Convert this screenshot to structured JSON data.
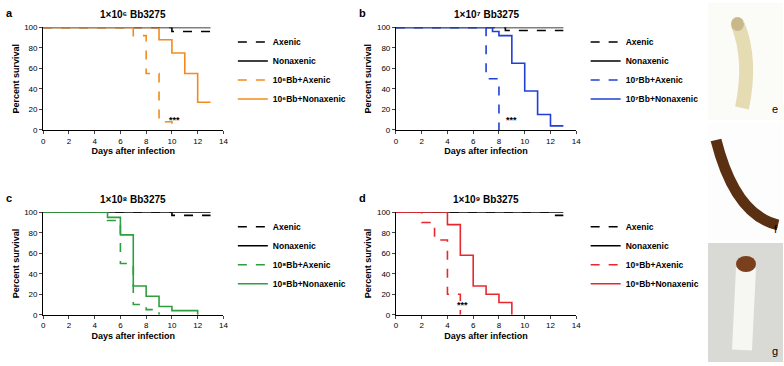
{
  "chart_data": [
    {
      "panel": "a",
      "type": "line",
      "title": "1×10⁶ Bb3275",
      "x_label": "Days after infection",
      "y_label": "Percent survival",
      "xlim": [
        0,
        14
      ],
      "xticks": [
        0,
        2,
        4,
        6,
        8,
        10,
        12,
        14
      ],
      "ylim": [
        0,
        100
      ],
      "yticks": [
        0,
        20,
        40,
        60,
        80,
        100
      ],
      "annotations": [
        {
          "text": "***",
          "x": 9.6,
          "y": 3
        }
      ],
      "series": [
        {
          "name": "Axenic",
          "color": "#000000",
          "line_style": "dashed",
          "x": [
            0,
            10,
            13
          ],
          "values": [
            100,
            96,
            96
          ]
        },
        {
          "name": "Nonaxenic",
          "color": "#000000",
          "line_style": "solid",
          "x": [
            0,
            13
          ],
          "values": [
            100,
            100
          ]
        },
        {
          "name": "10⁶Bb+Axenic",
          "color": "#f28a1e",
          "line_style": "dashed",
          "x": [
            0,
            7,
            8,
            9,
            10
          ],
          "values": [
            100,
            92,
            55,
            8,
            0
          ]
        },
        {
          "name": "10⁶Bb+Nonaxenic",
          "color": "#f28a1e",
          "line_style": "solid",
          "x": [
            0,
            9,
            10,
            11,
            12,
            13
          ],
          "values": [
            100,
            88,
            75,
            55,
            27,
            27
          ]
        }
      ]
    },
    {
      "panel": "b",
      "type": "line",
      "title": "1×10⁷ Bb3275",
      "x_label": "Days after infection",
      "y_label": "Percent survival",
      "xlim": [
        0,
        14
      ],
      "xticks": [
        0,
        2,
        4,
        6,
        8,
        10,
        12,
        14
      ],
      "ylim": [
        0,
        100
      ],
      "yticks": [
        0,
        20,
        40,
        60,
        80,
        100
      ],
      "annotations": [
        {
          "text": "***",
          "x": 8.4,
          "y": 3
        }
      ],
      "series": [
        {
          "name": "Axenic",
          "color": "#000000",
          "line_style": "dashed",
          "x": [
            0,
            8.5,
            13
          ],
          "values": [
            100,
            97,
            97
          ]
        },
        {
          "name": "Nonaxenic",
          "color": "#000000",
          "line_style": "solid",
          "x": [
            0,
            13
          ],
          "values": [
            100,
            100
          ]
        },
        {
          "name": "10⁷Bb+Axenic",
          "color": "#1f3fd6",
          "line_style": "dashed",
          "x": [
            0,
            7,
            8
          ],
          "values": [
            100,
            50,
            0
          ]
        },
        {
          "name": "10⁷Bb+Nonaxenic",
          "color": "#1f3fd6",
          "line_style": "solid",
          "x": [
            0,
            7.5,
            8,
            9,
            10,
            11,
            12,
            13
          ],
          "values": [
            100,
            96,
            92,
            65,
            38,
            15,
            4,
            4
          ]
        }
      ]
    },
    {
      "panel": "c",
      "type": "line",
      "title": "1×10⁸ Bb3275",
      "x_label": "Days after infection",
      "y_label": "Percent survival",
      "xlim": [
        0,
        14
      ],
      "xticks": [
        0,
        2,
        4,
        6,
        8,
        10,
        12,
        14
      ],
      "ylim": [
        0,
        100
      ],
      "yticks": [
        0,
        20,
        40,
        60,
        80,
        100
      ],
      "annotations": [],
      "series": [
        {
          "name": "Axenic",
          "color": "#000000",
          "line_style": "dashed",
          "x": [
            0,
            10,
            13
          ],
          "values": [
            100,
            97,
            97
          ]
        },
        {
          "name": "Nonaxenic",
          "color": "#000000",
          "line_style": "solid",
          "x": [
            0,
            13
          ],
          "values": [
            100,
            100
          ]
        },
        {
          "name": "10⁸Bb+Axenic",
          "color": "#2e9e3e",
          "line_style": "dashed",
          "x": [
            0,
            5,
            6,
            7,
            8,
            9
          ],
          "values": [
            100,
            92,
            50,
            10,
            5,
            0
          ]
        },
        {
          "name": "10⁸Bb+Nonaxenic",
          "color": "#2e9e3e",
          "line_style": "solid",
          "x": [
            0,
            5,
            6,
            7,
            8,
            9,
            10,
            12
          ],
          "values": [
            100,
            95,
            78,
            28,
            18,
            8,
            4,
            0
          ]
        }
      ]
    },
    {
      "panel": "d",
      "type": "line",
      "title": "1×10⁹ Bb3275",
      "x_label": "Days after infection",
      "y_label": "Percent survival",
      "xlim": [
        0,
        14
      ],
      "xticks": [
        0,
        2,
        4,
        6,
        8,
        10,
        12,
        14
      ],
      "ylim": [
        0,
        100
      ],
      "yticks": [
        0,
        20,
        40,
        60,
        80,
        100
      ],
      "annotations": [
        {
          "text": "***",
          "x": 4.6,
          "y": 3
        }
      ],
      "series": [
        {
          "name": "Axenic",
          "color": "#000000",
          "line_style": "dashed",
          "x": [
            0,
            12,
            13
          ],
          "values": [
            100,
            97,
            97
          ]
        },
        {
          "name": "Nonaxenic",
          "color": "#000000",
          "line_style": "solid",
          "x": [
            0,
            13
          ],
          "values": [
            100,
            100
          ]
        },
        {
          "name": "10⁹Bb+Axenic",
          "color": "#e8282e",
          "line_style": "dashed",
          "x": [
            0,
            2,
            3,
            4,
            5
          ],
          "values": [
            100,
            90,
            73,
            20,
            0
          ]
        },
        {
          "name": "10⁹Bb+Nonaxenic",
          "color": "#e8282e",
          "line_style": "solid",
          "x": [
            0,
            4,
            5,
            6,
            7,
            8,
            9
          ],
          "values": [
            100,
            88,
            58,
            28,
            20,
            12,
            0
          ]
        }
      ]
    }
  ],
  "photos": {
    "labels": [
      "e",
      "f",
      "g"
    ]
  }
}
